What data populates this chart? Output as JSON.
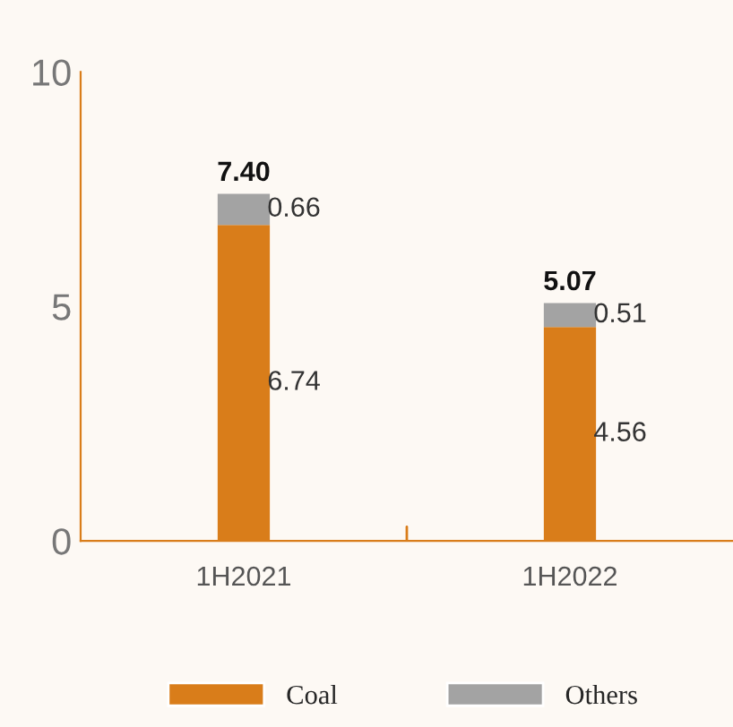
{
  "chart_data": {
    "type": "bar",
    "stacked": true,
    "categories": [
      "1H2021",
      "1H2022"
    ],
    "series": [
      {
        "name": "Coal",
        "color": "#d97d1a",
        "values": [
          6.74,
          4.56
        ]
      },
      {
        "name": "Others",
        "color": "#a3a3a3",
        "values": [
          0.66,
          0.51
        ]
      }
    ],
    "ylim": [
      0,
      10
    ],
    "yticks": [
      0,
      5,
      10
    ],
    "data_labels": true,
    "totals": [
      "7.40",
      "5.07"
    ],
    "legend": "bottom",
    "grid": false
  }
}
